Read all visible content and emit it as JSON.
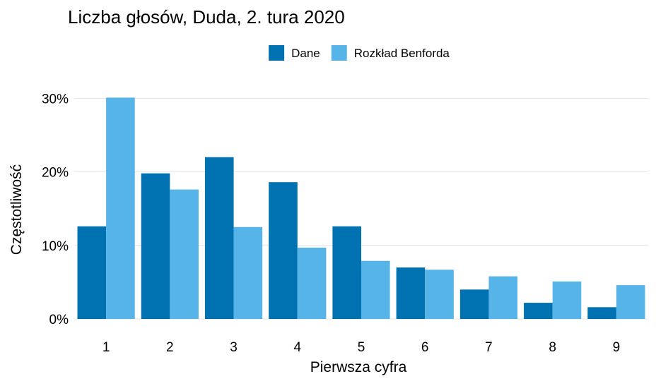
{
  "chart_data": {
    "type": "bar",
    "title": "Liczba głosów, Duda, 2. tura 2020",
    "xlabel": "Pierwsza cyfra",
    "ylabel": "Częstotliwość",
    "categories": [
      "1",
      "2",
      "3",
      "4",
      "5",
      "6",
      "7",
      "8",
      "9"
    ],
    "series": [
      {
        "name": "Dane",
        "color": "#0072B2",
        "values": [
          12.6,
          19.8,
          22.0,
          18.6,
          12.6,
          7.0,
          4.0,
          2.2,
          1.6
        ]
      },
      {
        "name": "Rozkład Benforda",
        "color": "#56B4E9",
        "values": [
          30.1,
          17.6,
          12.5,
          9.7,
          7.9,
          6.7,
          5.8,
          5.1,
          4.6
        ]
      }
    ],
    "ylim": [
      0,
      30.9
    ],
    "yticks": [
      0,
      10,
      20,
      30
    ],
    "ytick_labels": [
      "0%",
      "10%",
      "20%",
      "30%"
    ],
    "grid": "horizontal",
    "legend_position": "top"
  }
}
